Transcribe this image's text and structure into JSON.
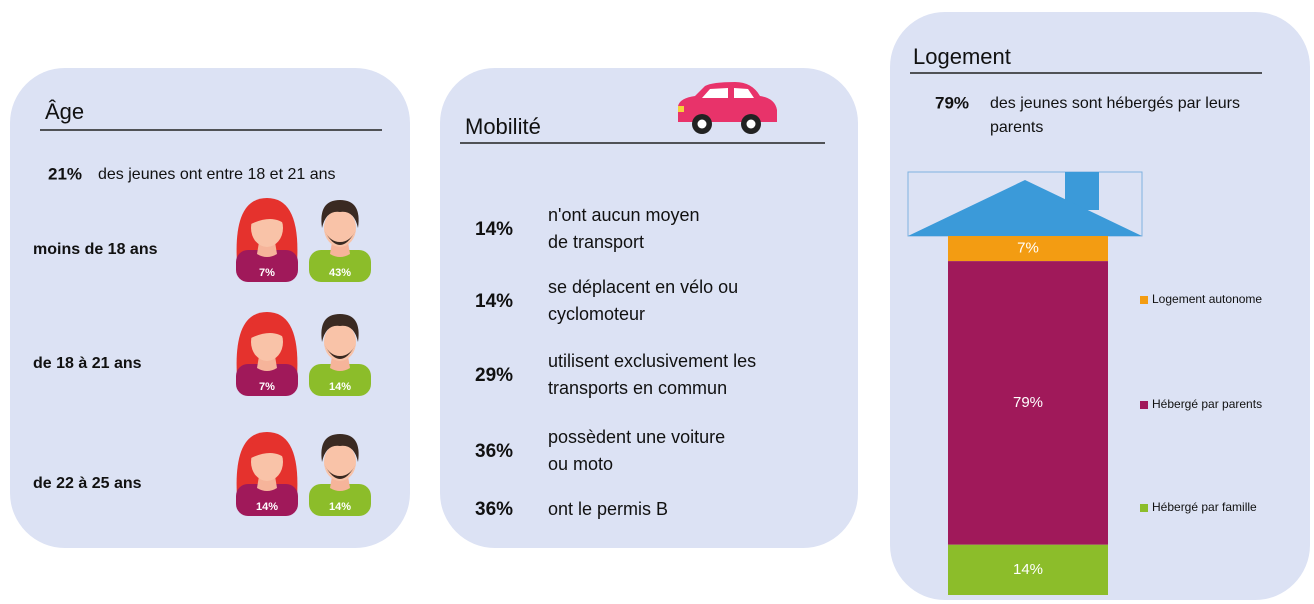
{
  "age": {
    "title": "Âge",
    "highlight": "21%",
    "highlight_text": "des jeunes ont entre 18 et 21 ans",
    "rows": [
      {
        "label": "moins de 18 ans",
        "female": "7%",
        "male": "43%"
      },
      {
        "label": "de 18 à 21 ans",
        "female": "7%",
        "male": "14%"
      },
      {
        "label": "de 22 à 25 ans",
        "female": "14%",
        "male": "14%"
      }
    ]
  },
  "mobilite": {
    "title": "Mobilité",
    "items": [
      {
        "percent": "14%",
        "lines": [
          "n'ont aucun moyen",
          "de transport"
        ]
      },
      {
        "percent": "14%",
        "lines": [
          "se déplacent en vélo ou",
          "cyclomoteur"
        ]
      },
      {
        "percent": "29%",
        "lines": [
          "utilisent exclusivement les",
          "transports en commun"
        ]
      },
      {
        "percent": "36%",
        "lines": [
          "possèdent une voiture",
          "ou moto"
        ]
      },
      {
        "percent": "36%",
        "lines": [
          "ont le permis B"
        ]
      }
    ]
  },
  "logement": {
    "title": "Logement",
    "highlight": "79%",
    "highlight_lines": [
      "des jeunes sont hébergés par leurs",
      "parents"
    ],
    "segments": [
      {
        "name": "Logement autonome",
        "value": 7,
        "label": "7%",
        "color": "#f39c12"
      },
      {
        "name": "Hébergé par parents",
        "value": 79,
        "label": "79%",
        "color": "#a0195a"
      },
      {
        "name": "Hébergé par famille",
        "value": 14,
        "label": "14%",
        "color": "#8cbd2a"
      }
    ]
  }
}
